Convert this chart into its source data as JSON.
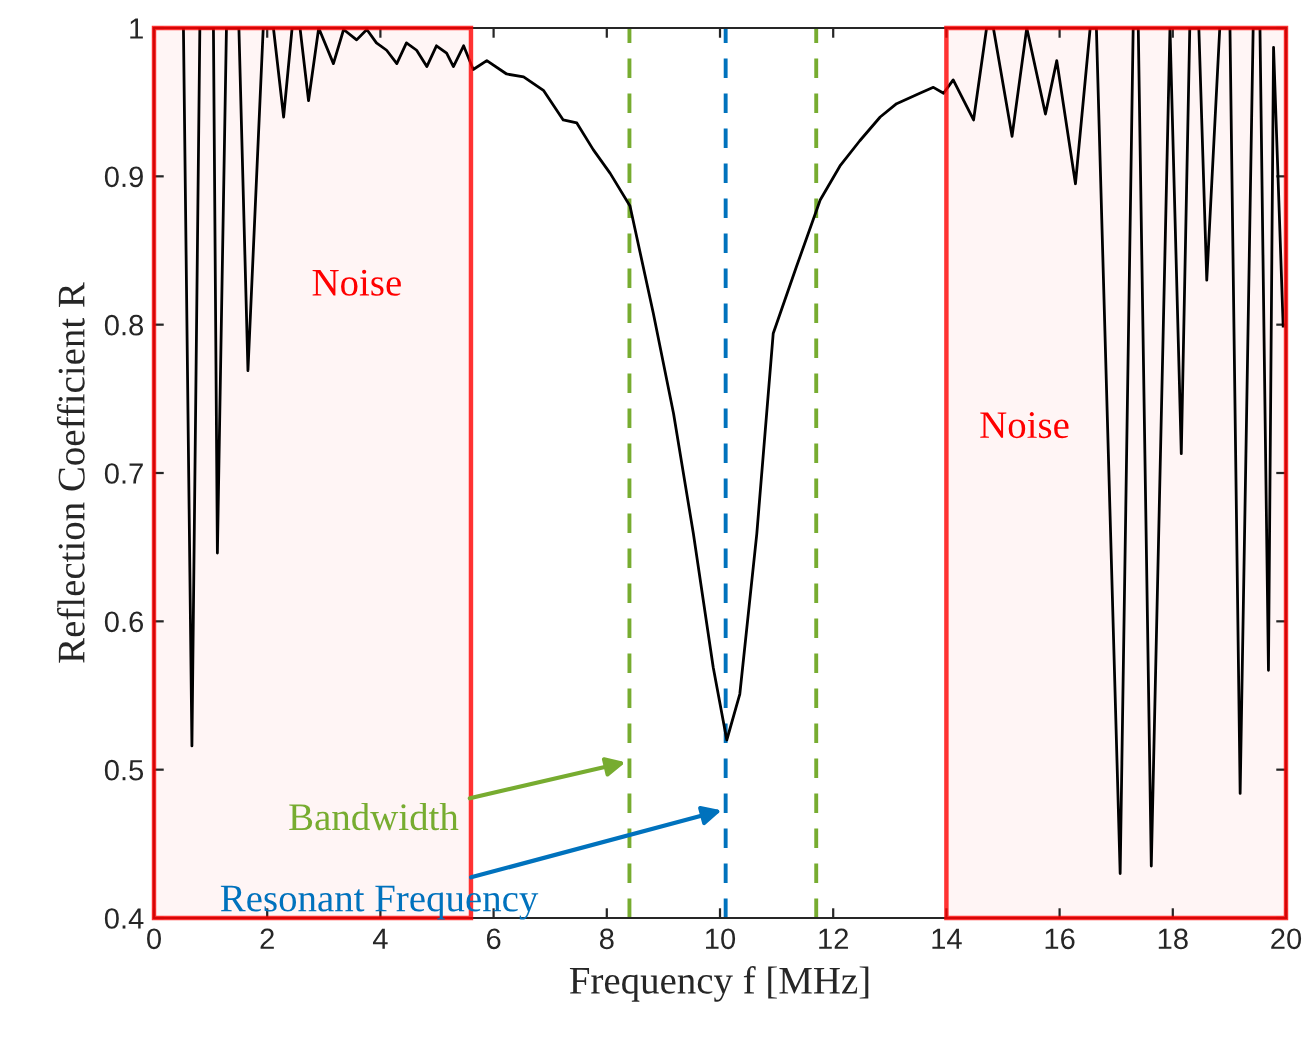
{
  "chart_data": {
    "type": "line",
    "xlabel": "Frequency f [MHz]",
    "ylabel": "Reflection Coefficient R",
    "x": [
      0.52,
      0.67,
      0.81,
      1.05,
      1.12,
      1.28,
      1.5,
      1.66,
      1.93,
      2.11,
      2.29,
      2.44,
      2.58,
      2.73,
      2.91,
      3.17,
      3.35,
      3.58,
      3.76,
      3.93,
      4.11,
      4.29,
      4.46,
      4.64,
      4.82,
      4.99,
      5.17,
      5.29,
      5.47,
      5.64,
      5.88,
      6.23,
      6.53,
      6.88,
      7.23,
      7.47,
      7.76,
      8.06,
      8.41,
      8.82,
      9.18,
      9.53,
      9.88,
      10.12,
      10.35,
      10.65,
      10.94,
      11.35,
      11.77,
      12.12,
      12.47,
      12.83,
      13.12,
      13.53,
      13.77,
      13.95,
      14.12,
      14.48,
      14.71,
      14.83,
      15.16,
      15.42,
      15.75,
      15.95,
      16.28,
      16.54,
      16.65,
      17.07,
      17.3,
      17.39,
      17.62,
      17.95,
      18.15,
      18.3,
      18.46,
      18.6,
      18.83,
      19.01,
      19.19,
      19.42,
      19.54,
      19.69,
      19.78,
      19.95
    ],
    "series": [
      {
        "color": "#000000",
        "values": [
          1.0,
          0.516,
          1.0,
          1.0,
          0.646,
          1.0,
          1.0,
          0.769,
          1.0,
          1.0,
          0.94,
          1.0,
          1.0,
          0.951,
          1.0,
          0.976,
          0.999,
          0.992,
          0.999,
          0.99,
          0.985,
          0.976,
          0.99,
          0.985,
          0.974,
          0.988,
          0.983,
          0.974,
          0.988,
          0.972,
          0.978,
          0.969,
          0.967,
          0.958,
          0.938,
          0.936,
          0.918,
          0.902,
          0.88,
          0.808,
          0.74,
          0.659,
          0.569,
          0.52,
          0.551,
          0.659,
          0.794,
          0.839,
          0.884,
          0.907,
          0.924,
          0.94,
          0.949,
          0.956,
          0.96,
          0.956,
          0.965,
          0.938,
          1.0,
          1.0,
          0.927,
          1.0,
          0.942,
          0.978,
          0.895,
          1.0,
          1.0,
          0.43,
          1.0,
          1.0,
          0.435,
          1.0,
          0.713,
          1.0,
          1.0,
          0.83,
          1.0,
          1.0,
          0.484,
          1.0,
          1.0,
          0.567,
          0.987,
          0.799
        ]
      }
    ],
    "xlim": [
      0,
      20
    ],
    "ylim": [
      0.4,
      1
    ],
    "xticks": [
      0,
      2,
      4,
      6,
      8,
      10,
      12,
      14,
      16,
      18,
      20
    ],
    "yticks": [
      0.4,
      0.5,
      0.6,
      0.7,
      0.8,
      0.9,
      1
    ],
    "grid": false,
    "marker": "none",
    "line_style": "solid",
    "ref_lines": [
      {
        "axis": "x",
        "value": 8.4,
        "label": "Bandwidth",
        "color": "#77ac30",
        "line_style": "dashed"
      },
      {
        "axis": "x",
        "value": 10.1,
        "label": "Resonant Frequency",
        "color": "#0072bd",
        "line_style": "dashed"
      },
      {
        "axis": "x",
        "value": 11.7,
        "color": "#77ac30",
        "line_style": "dashed"
      }
    ],
    "bands": [
      {
        "axis": "x",
        "from": 0,
        "to": 5.6,
        "color": "#ff0000",
        "label": "Noise"
      },
      {
        "axis": "x",
        "from": 14,
        "to": 20,
        "color": "#ff0000",
        "label": "Noise"
      }
    ]
  }
}
